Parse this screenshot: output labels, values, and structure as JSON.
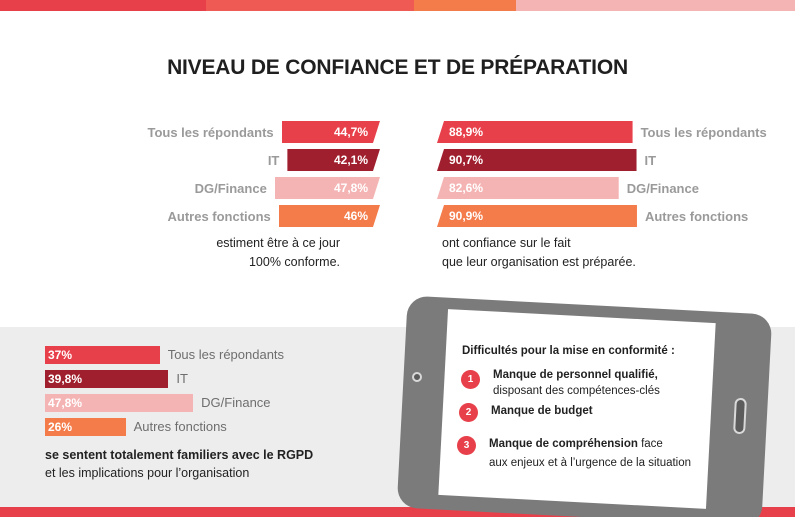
{
  "header": {
    "title": "NIVEAU DE CONFIANCE ET DE PRÉPARATION"
  },
  "colors": {
    "tous": "#e8404a",
    "it": "#a01f2e",
    "dg": "#f5b4b4",
    "autres": "#f47b4a",
    "panel": "#ededed",
    "phone": "#7b7b7b"
  },
  "chart_data": [
    {
      "type": "bar",
      "orientation": "horizontal",
      "categories": [
        "Tous les répondants",
        "IT",
        "DG/Finance",
        "Autres fonctions"
      ],
      "values": [
        44.7,
        42.1,
        47.8,
        46
      ],
      "value_labels": [
        "44,7%",
        "42,1%",
        "47,8%",
        "46%"
      ],
      "caption_lines": [
        "estiment être à ce jour",
        "100% conforme."
      ],
      "xlim": [
        0,
        100
      ]
    },
    {
      "type": "bar",
      "orientation": "horizontal",
      "categories": [
        "Tous les répondants",
        "IT",
        "DG/Finance",
        "Autres fonctions"
      ],
      "values": [
        88.9,
        90.7,
        82.6,
        90.9
      ],
      "value_labels": [
        "88,9%",
        "90,7%",
        "82,6%",
        "90,9%"
      ],
      "caption_lines": [
        "ont confiance sur le fait",
        "que leur organisation est préparée."
      ],
      "xlim": [
        0,
        100
      ]
    },
    {
      "type": "bar",
      "orientation": "horizontal",
      "categories": [
        "Tous les répondants",
        "IT",
        "DG/Finance",
        "Autres fonctions"
      ],
      "values": [
        37,
        39.8,
        47.8,
        26
      ],
      "value_labels": [
        "37%",
        "39,8%",
        "47,8%",
        "26%"
      ],
      "caption_bold": "se sentent totalement familiers avec le RGPD",
      "caption": "et les implications pour l’organisation",
      "xlim": [
        0,
        100
      ]
    }
  ],
  "difficulties": {
    "title": "Difficultés pour la mise en conformité :",
    "items": [
      {
        "num": "1",
        "bold": "Manque de personnel qualifié,",
        "rest": "",
        "line2": "disposant des compétences-clés"
      },
      {
        "num": "2",
        "bold": "Manque de budget",
        "rest": "",
        "line2": ""
      },
      {
        "num": "3",
        "bold": "Manque de compréhension",
        "rest": " face",
        "line2": "aux enjeux et à l’urgence de la situation"
      }
    ]
  }
}
